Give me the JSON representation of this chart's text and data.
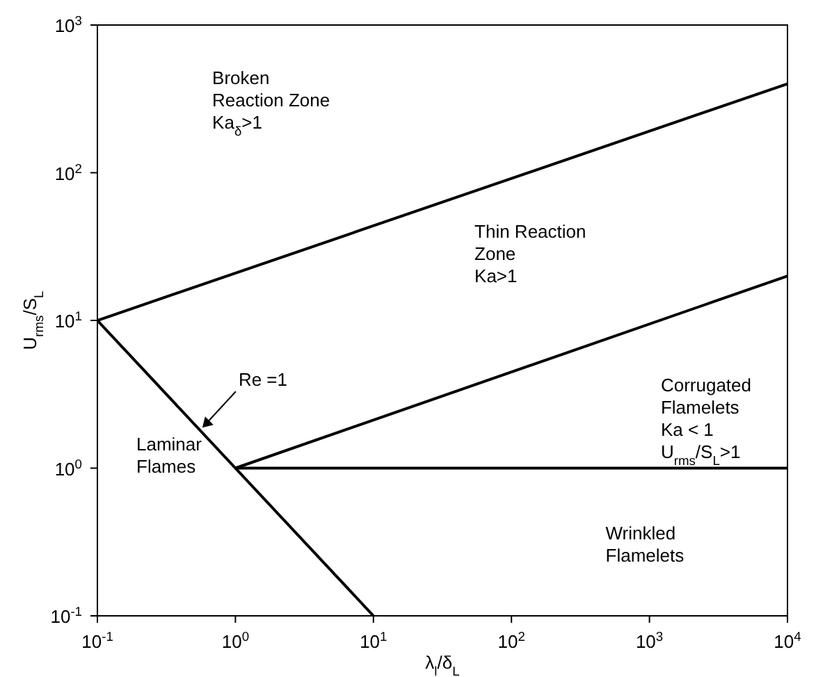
{
  "chart_data": {
    "type": "line",
    "xlabel": "λ$_{l}$/δ$_{L}$",
    "ylabel": "U$_{rms}$/S$_{L}$",
    "log": "xy",
    "marker": "none",
    "line_style": "solid",
    "xlim": [
      0.1,
      10000
    ],
    "ylim": [
      0.1,
      1000
    ],
    "xticks": [
      {
        "value": 0.1,
        "label": "10$^{-1}$"
      },
      {
        "value": 1,
        "label": "10$^{0}$"
      },
      {
        "value": 10,
        "label": "10$^{1}$"
      },
      {
        "value": 100,
        "label": "10$^{2}$"
      },
      {
        "value": 1000,
        "label": "10$^{3}$"
      },
      {
        "value": 10000,
        "label": "10$^{4}$"
      }
    ],
    "yticks": [
      {
        "value": 0.1,
        "label": "10$^{-1}$"
      },
      {
        "value": 1,
        "label": "10$^{0}$"
      },
      {
        "value": 10,
        "label": "10$^{1}$"
      },
      {
        "value": 100,
        "label": "10$^{2}$"
      },
      {
        "value": 1000,
        "label": "10$^{3}$"
      }
    ],
    "series": [
      {
        "color": "#000000",
        "x": [
          0.1,
          10
        ],
        "values": [
          10,
          0.1
        ]
      },
      {
        "color": "#000000",
        "x": [
          0.1,
          10000
        ],
        "values": [
          10,
          400
        ]
      },
      {
        "color": "#000000",
        "x": [
          1,
          10000
        ],
        "values": [
          1,
          20
        ]
      },
      {
        "color": "#000000",
        "x": [
          1,
          10000
        ],
        "values": [
          1,
          1
        ]
      }
    ],
    "annotations": [
      "Broken\nReaction Zone\nKa$_{δ}$>1",
      "Thin Reaction\nZone\nKa>1",
      "Corrugated\nFlamelets\nKa < 1\nU$_{rms}$/S$_{L}$>1",
      "Laminar\nFlames",
      "Wrinkled\nFlamelets",
      {
        "text": "Re =1",
        "x": 0.55,
        "y": 1.8
      }
    ]
  }
}
